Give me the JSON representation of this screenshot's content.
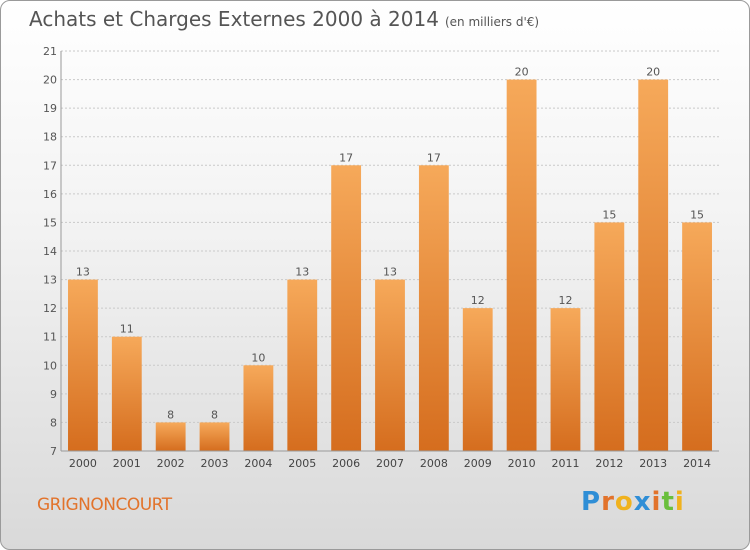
{
  "title": "Achats et Charges Externes 2000 à 2014",
  "subtitle": "(en milliers d'€)",
  "place": "GRIGNONCOURT",
  "logo": {
    "text": "Proxiti",
    "letters": [
      {
        "ch": "P",
        "color": "#2f8ed6"
      },
      {
        "ch": "r",
        "color": "#e2732b"
      },
      {
        "ch": "o",
        "color": "#f0b21e"
      },
      {
        "ch": "x",
        "color": "#2f8ed6"
      },
      {
        "ch": "i",
        "color": "#e2732b"
      },
      {
        "ch": "t",
        "color": "#6abf3c"
      },
      {
        "ch": "i",
        "color": "#f0b21e"
      }
    ]
  },
  "colors": {
    "bar_light": "#f6a95a",
    "bar_dark": "#d56d1e",
    "accent": "#e2732b"
  },
  "chart_data": {
    "type": "bar",
    "categories": [
      "2000",
      "2001",
      "2002",
      "2003",
      "2004",
      "2005",
      "2006",
      "2007",
      "2008",
      "2009",
      "2010",
      "2011",
      "2012",
      "2013",
      "2014"
    ],
    "values": [
      13,
      11,
      8,
      8,
      10,
      13,
      17,
      13,
      17,
      12,
      20,
      12,
      15,
      20,
      15
    ],
    "ylim": [
      7,
      21
    ],
    "yticks": [
      7,
      8,
      9,
      10,
      11,
      12,
      13,
      14,
      15,
      16,
      17,
      18,
      19,
      20,
      21
    ],
    "grid": true,
    "data_labels": true
  }
}
